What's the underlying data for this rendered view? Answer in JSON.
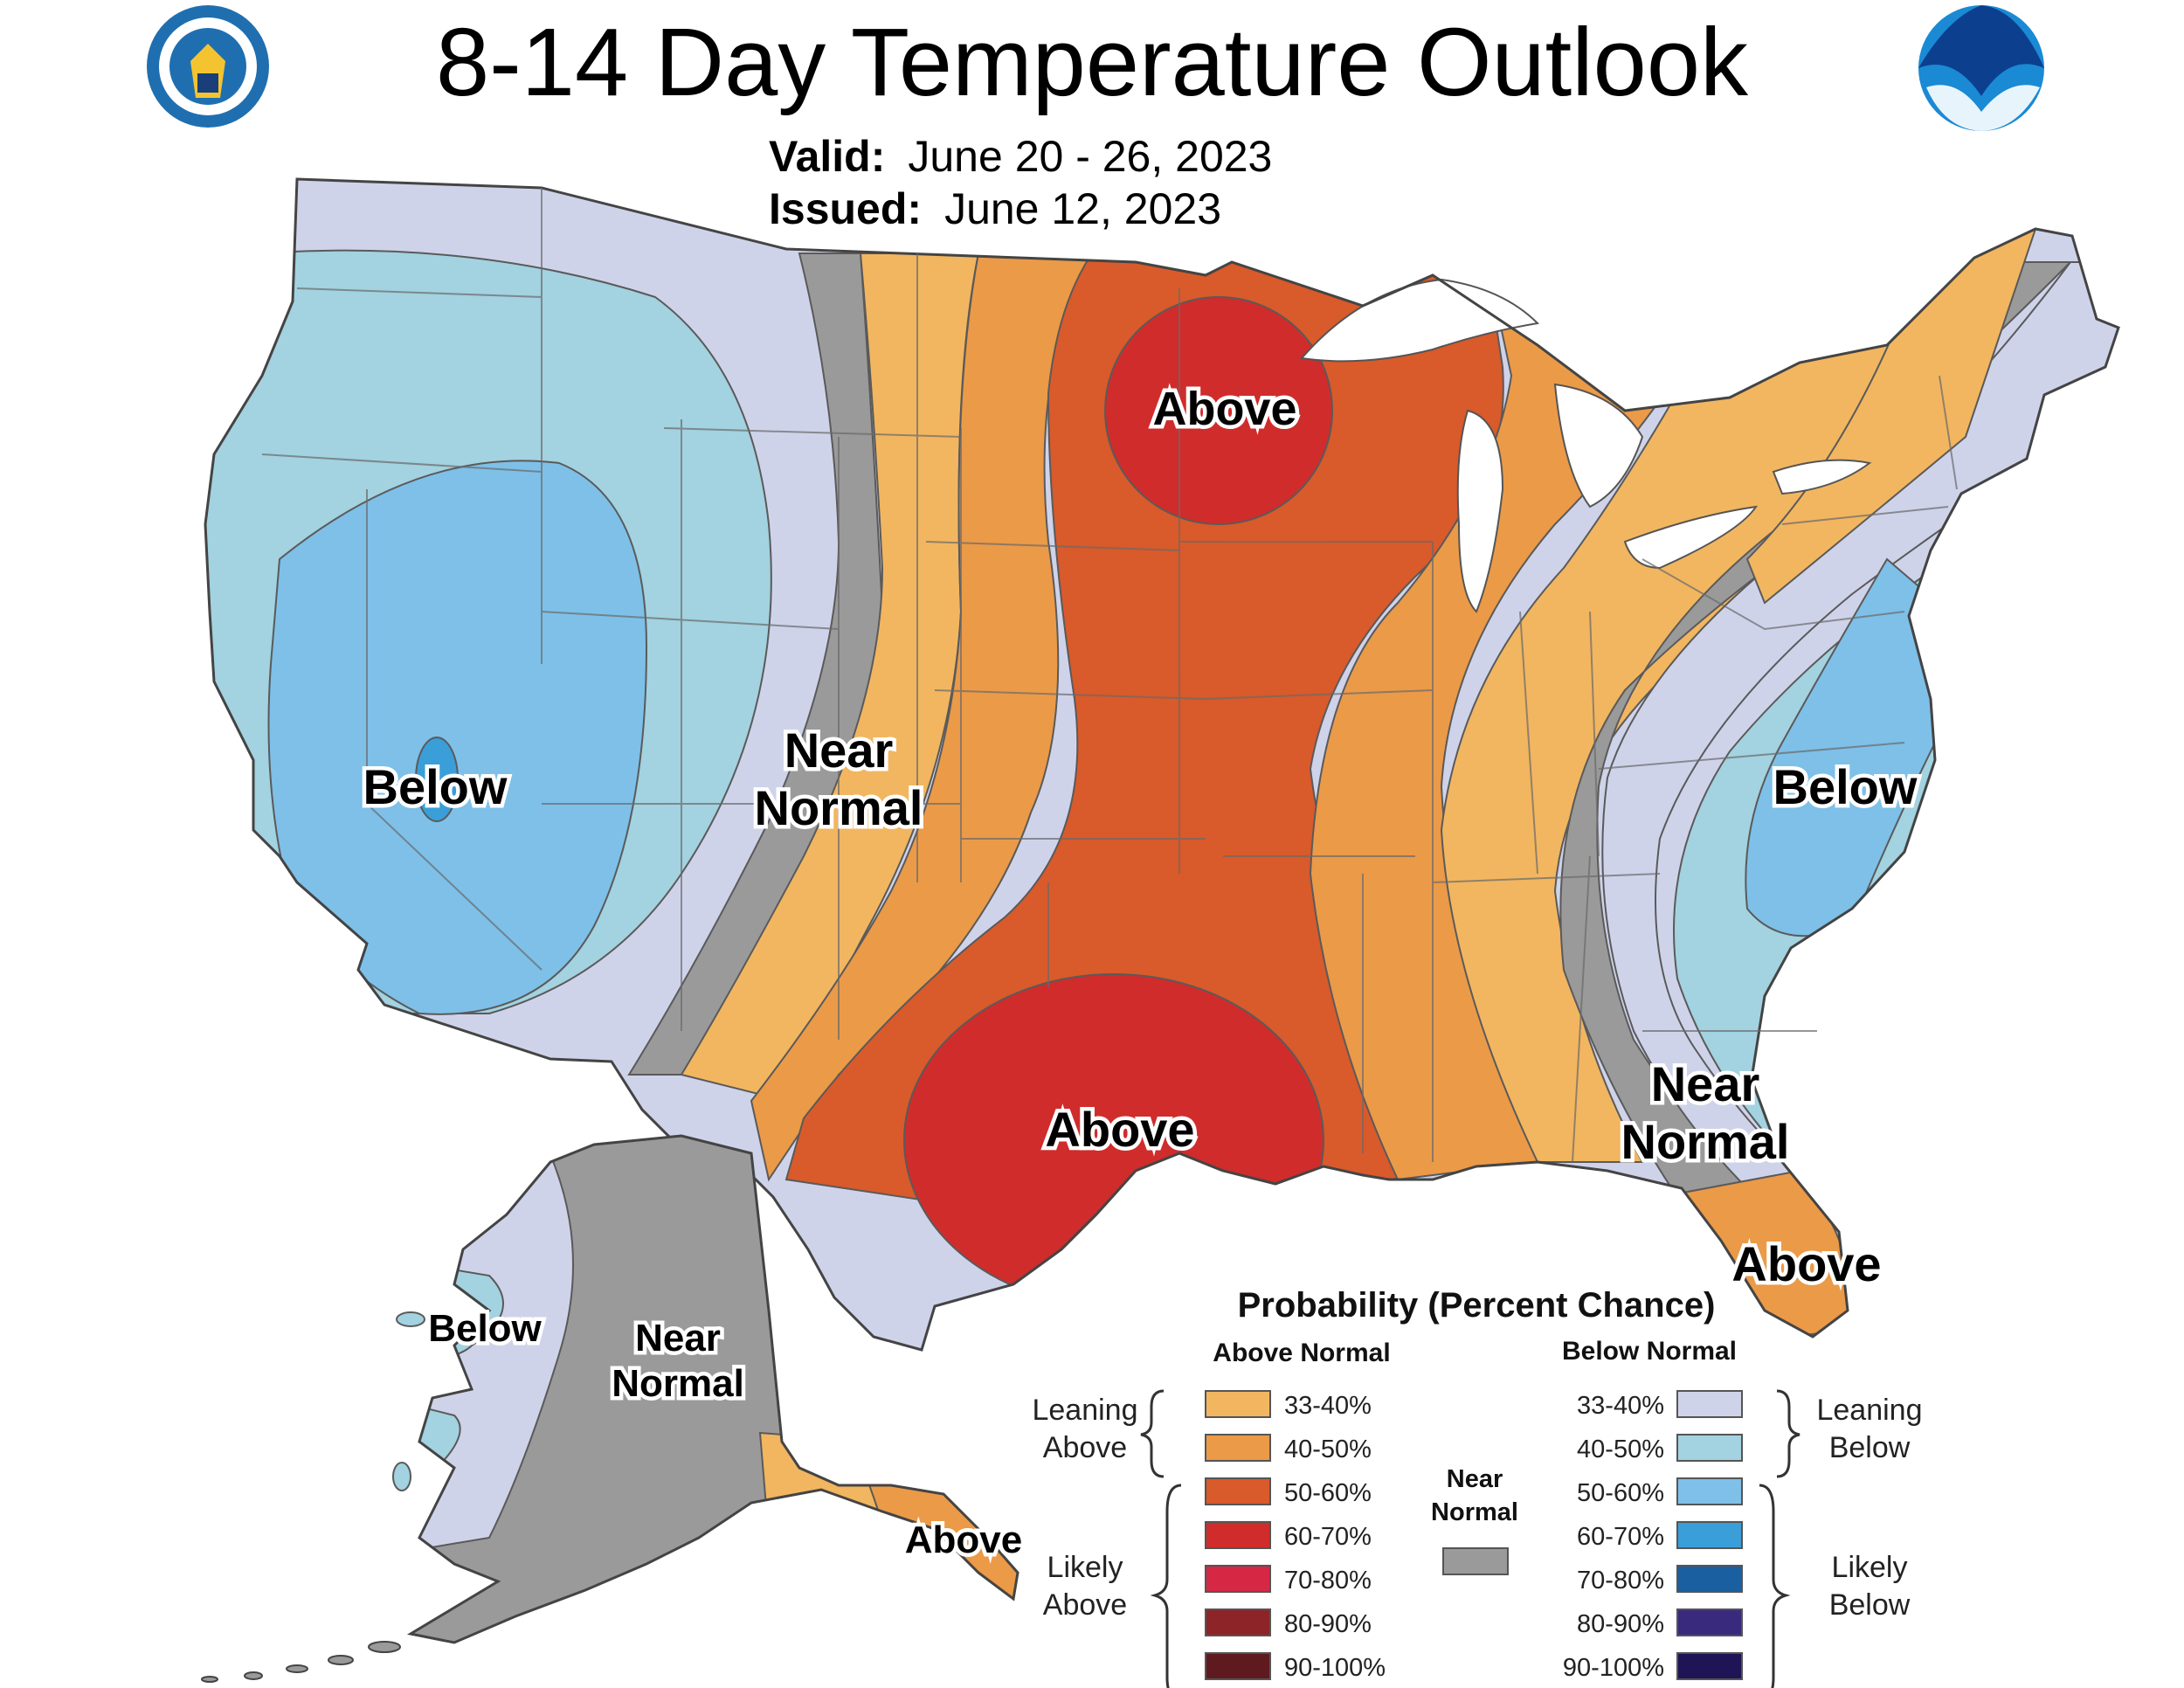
{
  "title": "8-14 Day Temperature Outlook",
  "valid_label": "Valid:",
  "valid_value": "June 20 - 26, 2023",
  "issued_label": "Issued:",
  "issued_value": "June 12, 2023",
  "logos": {
    "left": "department-of-commerce-seal",
    "right": "noaa-logo"
  },
  "colors": {
    "above_33_40": "#f2b660",
    "above_40_50": "#eb9a48",
    "above_50_60": "#d95a2a",
    "above_60_70": "#d02c2c",
    "above_70_80": "#d62845",
    "above_80_90": "#8c2428",
    "above_90_100": "#5e1a1f",
    "near_normal": "#9a9a9a",
    "below_33_40": "#cfd3ea",
    "below_40_50": "#a3d2e0",
    "below_50_60": "#7ec0e8",
    "below_60_70": "#3a9ed8",
    "below_70_80": "#1a5fa0",
    "below_80_90": "#3a2a7e",
    "below_90_100": "#1f1456"
  },
  "region_labels": {
    "above_upper_midwest": "Above",
    "below_west": "Below",
    "near_normal_plains": "Near",
    "near_normal_plains_2": "Normal",
    "below_east": "Below",
    "above_texas": "Above",
    "near_normal_southeast": "Near",
    "near_normal_southeast_2": "Normal",
    "above_florida": "Above",
    "below_alaska_west": "Below",
    "near_normal_alaska": "Near",
    "near_normal_alaska_2": "Normal",
    "above_alaska_southeast": "Above"
  },
  "legend": {
    "title": "Probability (Percent Chance)",
    "above_header": "Above Normal",
    "below_header": "Below Normal",
    "leaning_above": [
      "Leaning",
      "Above"
    ],
    "likely_above": [
      "Likely",
      "Above"
    ],
    "leaning_below": [
      "Leaning",
      "Below"
    ],
    "likely_below": [
      "Likely",
      "Below"
    ],
    "near_normal": [
      "Near",
      "Normal"
    ],
    "above_ranges": [
      "33-40%",
      "40-50%",
      "50-60%",
      "60-70%",
      "70-80%",
      "80-90%",
      "90-100%"
    ],
    "below_ranges": [
      "33-40%",
      "40-50%",
      "50-60%",
      "60-70%",
      "70-80%",
      "80-90%",
      "90-100%"
    ]
  }
}
